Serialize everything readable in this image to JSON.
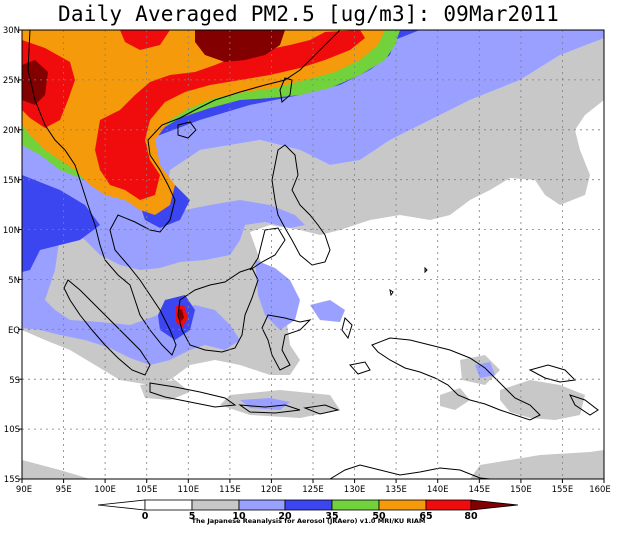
{
  "title": "Daily Averaged PM2.5 [ug/m3]: 09Mar2011",
  "map": {
    "lat_labels": [
      "30N",
      "25N",
      "20N",
      "15N",
      "10N",
      "5N",
      "EQ",
      "5S",
      "10S",
      "15S"
    ],
    "lon_labels": [
      "90E",
      "95E",
      "100E",
      "105E",
      "110E",
      "115E",
      "120E",
      "125E",
      "130E",
      "135E",
      "140E",
      "145E",
      "150E",
      "155E",
      "160E"
    ],
    "lat_range": [
      -15,
      30
    ],
    "lon_range": [
      90,
      160
    ]
  },
  "colorbar": {
    "tick_labels": [
      "0",
      "5",
      "10",
      "20",
      "35",
      "50",
      "65",
      "80"
    ],
    "colors": [
      "#ffffff",
      "#ffffff",
      "#c8c8c8",
      "#9aa0ff",
      "#3c46f0",
      "#72d23c",
      "#f59a0a",
      "#f00c0c",
      "#820000"
    ],
    "scheme": "white-gray-lightblue-blue-green-orange-red-darkred"
  },
  "credit": "The Japanese Reanalysis for Aerosol (JRAero) v1.0 MRI/KU RIAM"
}
